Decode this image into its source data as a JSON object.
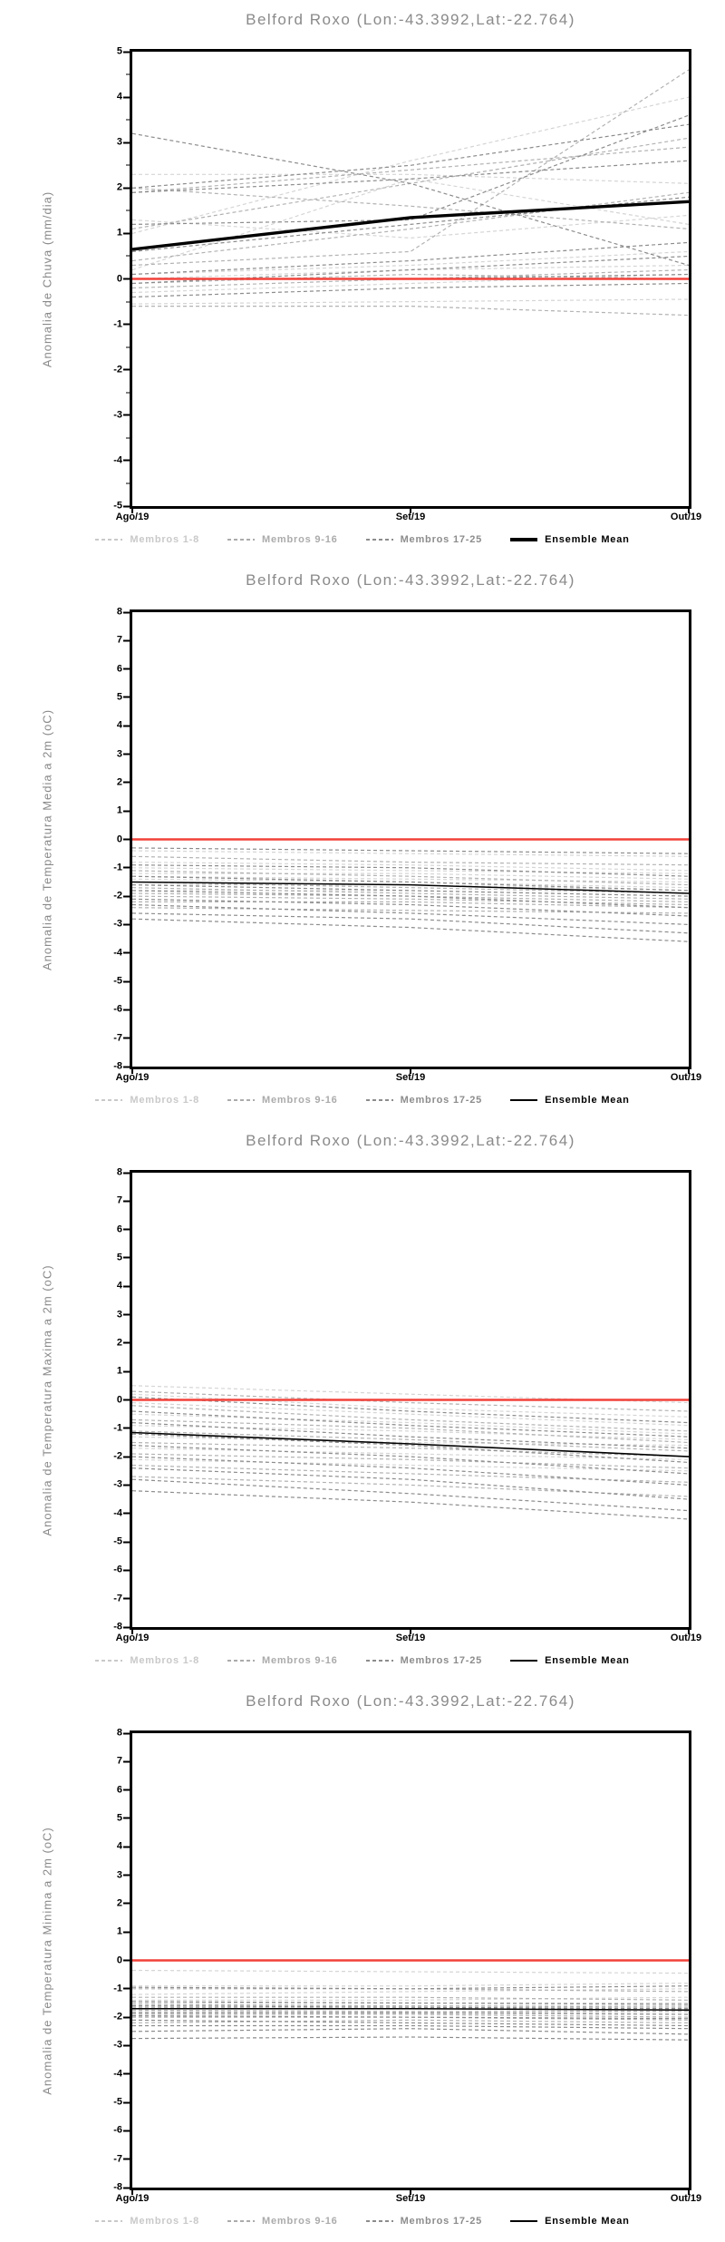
{
  "page": {
    "background": "#ffffff"
  },
  "legend_entries": [
    {
      "label": "Membros 1-8",
      "color": "#c9c9c9",
      "style": "dashed"
    },
    {
      "label": "Membros 9-16",
      "color": "#ababab",
      "style": "dashed"
    },
    {
      "label": "Membros 17-25",
      "color": "#8c8c8c",
      "style": "dashed"
    },
    {
      "label": "Ensemble Mean",
      "color": "#000000",
      "style": "solid"
    }
  ],
  "chart_data": [
    {
      "type": "line",
      "title": "Belford Roxo (Lon:-43.3992,Lat:-22.764)",
      "ylabel": "Anomalia de Chuva (mm/dia)",
      "x": [
        "Ago/19",
        "Set/19",
        "Out/19"
      ],
      "ylim": [
        -5,
        5
      ],
      "ytick_step": 1,
      "minor_tick_step": 0.5,
      "grid": false,
      "zero_line": {
        "value": 0,
        "color": "#f2423a",
        "width": 2.6
      },
      "series": [
        {
          "name": "Membros 1-8",
          "color": "#d5d5d5",
          "width": 1.2,
          "dashed": true,
          "members": [
            [
              2.3,
              2.3,
              2.1
            ],
            [
              0.1,
              0.3,
              0.6
            ],
            [
              -0.3,
              -0.1,
              0.1
            ],
            [
              1.0,
              2.6,
              4.0
            ],
            [
              0.0,
              0.2,
              0.3
            ],
            [
              -0.55,
              -0.5,
              -0.45
            ],
            [
              1.3,
              0.9,
              1.4
            ],
            [
              0.2,
              2.2,
              1.2
            ]
          ]
        },
        {
          "name": "Membros 9-16",
          "color": "#b2b2b2",
          "width": 1.2,
          "dashed": true,
          "members": [
            [
              1.9,
              2.4,
              2.9
            ],
            [
              -0.1,
              0.1,
              0.0
            ],
            [
              0.4,
              1.1,
              1.9
            ],
            [
              2.0,
              1.6,
              1.1
            ],
            [
              -0.6,
              -0.6,
              -0.8
            ],
            [
              0.3,
              0.6,
              4.6
            ],
            [
              1.1,
              2.1,
              3.1
            ],
            [
              -0.2,
              0.0,
              0.2
            ]
          ]
        },
        {
          "name": "Membros 17-25",
          "color": "#8c8c8c",
          "width": 1.2,
          "dashed": true,
          "members": [
            [
              3.2,
              2.1,
              0.3
            ],
            [
              0.0,
              0.0,
              0.1
            ],
            [
              1.9,
              2.2,
              2.6
            ],
            [
              0.6,
              1.2,
              1.8
            ],
            [
              -0.4,
              -0.2,
              -0.1
            ],
            [
              2.0,
              2.5,
              3.4
            ],
            [
              0.1,
              0.4,
              0.8
            ],
            [
              1.2,
              1.3,
              3.6
            ],
            [
              -0.1,
              0.2,
              0.5
            ]
          ]
        }
      ],
      "ensemble_mean": {
        "label": "Ensemble Mean",
        "values": [
          0.65,
          1.35,
          1.7
        ],
        "color": "#000000",
        "width": 3.4
      }
    },
    {
      "type": "line",
      "title": "Belford Roxo (Lon:-43.3992,Lat:-22.764)",
      "ylabel": "Anomalia de Temperatura Media a 2m (oC)",
      "x": [
        "Ago/19",
        "Set/19",
        "Out/19"
      ],
      "ylim": [
        -8,
        8
      ],
      "ytick_step": 1,
      "grid": false,
      "zero_line": {
        "value": 0,
        "color": "#f2423a",
        "width": 2.6
      },
      "series": [
        {
          "name": "Membros 1-8",
          "color": "#d5d5d5",
          "width": 1.2,
          "dashed": true,
          "members": [
            [
              -0.4,
              -0.5,
              -0.6
            ],
            [
              -0.8,
              -0.9,
              -1.1
            ],
            [
              -1.0,
              -1.1,
              -1.2
            ],
            [
              -1.2,
              -1.2,
              -1.4
            ],
            [
              -1.3,
              -1.4,
              -1.5
            ],
            [
              -1.4,
              -1.5,
              -1.7
            ],
            [
              -1.6,
              -1.6,
              -1.8
            ],
            [
              -1.8,
              -1.8,
              -2.0
            ]
          ]
        },
        {
          "name": "Membros 9-16",
          "color": "#b2b2b2",
          "width": 1.2,
          "dashed": true,
          "members": [
            [
              -0.6,
              -0.8,
              -0.9
            ],
            [
              -1.1,
              -1.3,
              -1.6
            ],
            [
              -1.5,
              -1.7,
              -1.9
            ],
            [
              -1.7,
              -1.9,
              -2.1
            ],
            [
              -1.9,
              -2.0,
              -2.2
            ],
            [
              -2.0,
              -2.1,
              -2.3
            ],
            [
              -2.2,
              -2.2,
              -2.4
            ],
            [
              -2.4,
              -2.5,
              -2.6
            ]
          ]
        },
        {
          "name": "Membros 17-25",
          "color": "#8c8c8c",
          "width": 1.2,
          "dashed": true,
          "members": [
            [
              -0.3,
              -0.4,
              -0.5
            ],
            [
              -0.9,
              -1.0,
              -1.3
            ],
            [
              -1.3,
              -1.5,
              -1.8
            ],
            [
              -1.6,
              -1.8,
              -2.0
            ],
            [
              -1.8,
              -2.0,
              -2.4
            ],
            [
              -2.1,
              -2.3,
              -2.7
            ],
            [
              -2.3,
              -2.6,
              -3.0
            ],
            [
              -2.6,
              -2.8,
              -3.3
            ],
            [
              -2.8,
              -3.1,
              -3.6
            ]
          ]
        }
      ],
      "ensemble_mean": {
        "label": "Ensemble Mean",
        "values": [
          -1.5,
          -1.6,
          -1.9
        ],
        "color": "#000000",
        "width": 1.5
      }
    },
    {
      "type": "line",
      "title": "Belford Roxo (Lon:-43.3992,Lat:-22.764)",
      "ylabel": "Anomalia de Temperatura Maxima a 2m (oC)",
      "x": [
        "Ago/19",
        "Set/19",
        "Out/19"
      ],
      "ylim": [
        -8,
        8
      ],
      "ytick_step": 1,
      "grid": false,
      "zero_line": {
        "value": 0,
        "color": "#f2423a",
        "width": 2.6
      },
      "series": [
        {
          "name": "Membros 1-8",
          "color": "#d5d5d5",
          "width": 1.2,
          "dashed": true,
          "members": [
            [
              0.5,
              0.2,
              -0.1
            ],
            [
              0.2,
              -0.3,
              -0.6
            ],
            [
              -0.1,
              -0.5,
              -0.9
            ],
            [
              -0.5,
              -0.8,
              -1.2
            ],
            [
              -0.9,
              -1.1,
              -1.4
            ],
            [
              -1.3,
              -1.5,
              -1.6
            ],
            [
              -1.7,
              -1.9,
              -2.1
            ],
            [
              -2.1,
              -2.3,
              -2.5
            ]
          ]
        },
        {
          "name": "Membros 9-16",
          "color": "#b2b2b2",
          "width": 1.2,
          "dashed": true,
          "members": [
            [
              0.3,
              -0.1,
              -0.4
            ],
            [
              -0.2,
              -0.7,
              -1.1
            ],
            [
              -0.7,
              -1.0,
              -1.5
            ],
            [
              -1.1,
              -1.4,
              -1.8
            ],
            [
              -1.5,
              -1.7,
              -2.0
            ],
            [
              -1.9,
              -2.1,
              -2.4
            ],
            [
              -2.3,
              -2.6,
              -2.9
            ],
            [
              -2.7,
              -3.0,
              -3.4
            ]
          ]
        },
        {
          "name": "Membros 17-25",
          "color": "#8c8c8c",
          "width": 1.2,
          "dashed": true,
          "members": [
            [
              0.1,
              -0.4,
              -0.8
            ],
            [
              -0.4,
              -0.9,
              -1.3
            ],
            [
              -0.8,
              -1.3,
              -1.7
            ],
            [
              -1.2,
              -1.6,
              -2.2
            ],
            [
              -1.6,
              -2.0,
              -2.6
            ],
            [
              -2.0,
              -2.4,
              -3.0
            ],
            [
              -2.4,
              -2.8,
              -3.5
            ],
            [
              -2.8,
              -3.3,
              -3.9
            ],
            [
              -3.2,
              -3.6,
              -4.2
            ]
          ]
        }
      ],
      "ensemble_mean": {
        "label": "Ensemble Mean",
        "values": [
          -1.15,
          -1.55,
          -2.0
        ],
        "color": "#000000",
        "width": 1.6
      }
    },
    {
      "type": "line",
      "title": "Belford Roxo (Lon:-43.3992,Lat:-22.764)",
      "ylabel": "Anomalia de Temperatura Minima a 2m (oC)",
      "x": [
        "Ago/19",
        "Set/19",
        "Out/19"
      ],
      "ylim": [
        -8,
        8
      ],
      "ytick_step": 1,
      "grid": false,
      "zero_line": {
        "value": 0,
        "color": "#f2423a",
        "width": 2.6
      },
      "series": [
        {
          "name": "Membros 1-8",
          "color": "#d5d5d5",
          "width": 1.2,
          "dashed": true,
          "members": [
            [
              -0.35,
              -0.4,
              -0.45
            ],
            [
              -0.9,
              -0.9,
              -0.8
            ],
            [
              -1.2,
              -1.1,
              -1.0
            ],
            [
              -1.4,
              -1.4,
              -1.3
            ],
            [
              -1.5,
              -1.5,
              -1.5
            ],
            [
              -1.6,
              -1.6,
              -1.6
            ],
            [
              -1.7,
              -1.7,
              -1.8
            ],
            [
              -1.8,
              -1.8,
              -1.9
            ]
          ]
        },
        {
          "name": "Membros 9-16",
          "color": "#b2b2b2",
          "width": 1.2,
          "dashed": true,
          "members": [
            [
              -1.0,
              -1.0,
              -1.1
            ],
            [
              -1.3,
              -1.3,
              -1.4
            ],
            [
              -1.55,
              -1.6,
              -1.65
            ],
            [
              -1.65,
              -1.7,
              -1.7
            ],
            [
              -1.75,
              -1.8,
              -1.8
            ],
            [
              -1.9,
              -1.9,
              -2.0
            ],
            [
              -2.0,
              -2.0,
              -2.1
            ],
            [
              -2.2,
              -2.1,
              -2.2
            ]
          ]
        },
        {
          "name": "Membros 17-25",
          "color": "#8c8c8c",
          "width": 1.2,
          "dashed": true,
          "members": [
            [
              -0.95,
              -1.0,
              -0.9
            ],
            [
              -1.45,
              -1.5,
              -1.55
            ],
            [
              -1.6,
              -1.65,
              -1.7
            ],
            [
              -1.85,
              -1.85,
              -1.9
            ],
            [
              -1.95,
              -2.0,
              -2.05
            ],
            [
              -2.1,
              -2.2,
              -2.3
            ],
            [
              -2.3,
              -2.3,
              -2.4
            ],
            [
              -2.5,
              -2.4,
              -2.6
            ],
            [
              -2.75,
              -2.7,
              -2.8
            ]
          ]
        }
      ],
      "ensemble_mean": {
        "label": "Ensemble Mean",
        "values": [
          -1.7,
          -1.7,
          -1.75
        ],
        "color": "#000000",
        "width": 1.5
      }
    }
  ]
}
